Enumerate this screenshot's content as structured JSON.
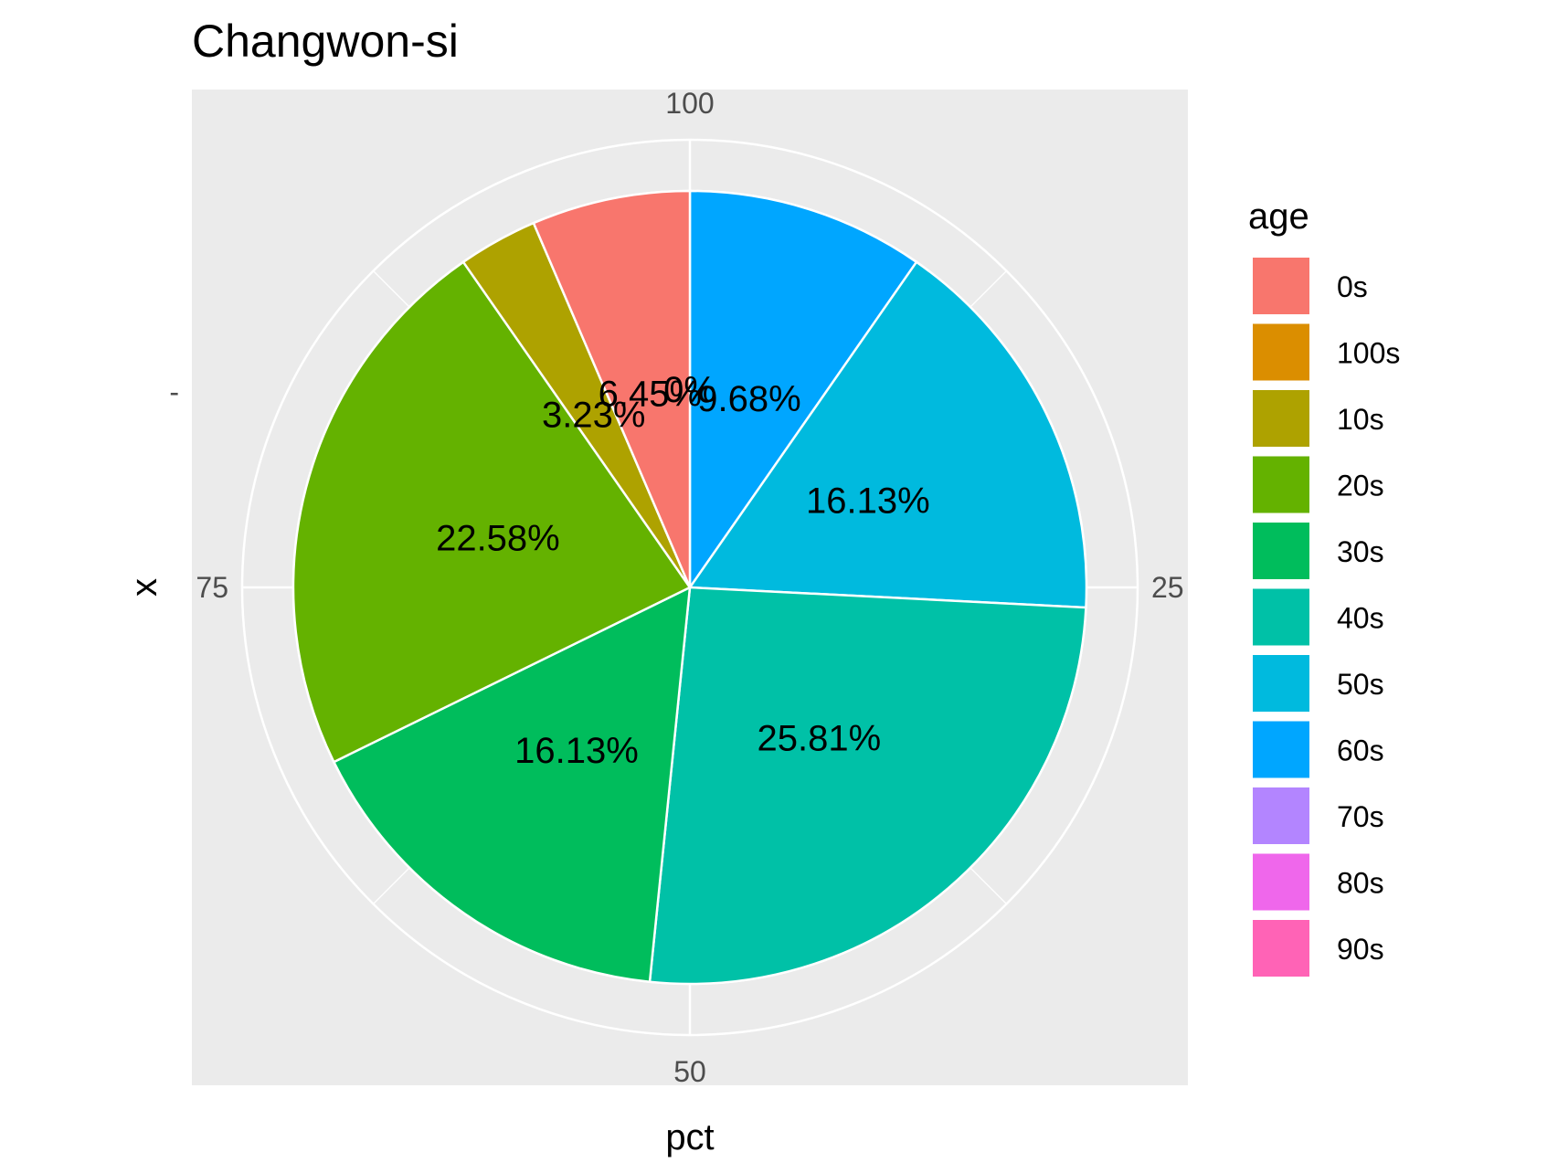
{
  "chart_data": {
    "type": "pie",
    "title": "Changwon-si",
    "xlabel": "pct",
    "ylabel": "x",
    "y_tick_label": "-",
    "theta_range": [
      0,
      100
    ],
    "theta_ticks": [
      "100",
      "25",
      "50",
      "75"
    ],
    "grid": true,
    "legend": {
      "title": "age",
      "position": "right",
      "entries": [
        "0s",
        "100s",
        "10s",
        "20s",
        "30s",
        "40s",
        "50s",
        "60s",
        "70s",
        "80s",
        "90s"
      ]
    },
    "slices": [
      {
        "label": "0s",
        "value": 6.45,
        "text": "6.45%",
        "color": "#F8766D"
      },
      {
        "label": "100s",
        "value": 0,
        "text": "0%",
        "color": "#DB8E00"
      },
      {
        "label": "10s",
        "value": 3.23,
        "text": "3.23%",
        "color": "#AEA200"
      },
      {
        "label": "20s",
        "value": 22.58,
        "text": "22.58%",
        "color": "#64B200"
      },
      {
        "label": "30s",
        "value": 16.13,
        "text": "16.13%",
        "color": "#00BD5C"
      },
      {
        "label": "40s",
        "value": 25.81,
        "text": "25.81%",
        "color": "#00C1A7"
      },
      {
        "label": "50s",
        "value": 16.13,
        "text": "16.13%",
        "color": "#00BADE"
      },
      {
        "label": "60s",
        "value": 9.68,
        "text": "9.68%",
        "color": "#00A6FF"
      },
      {
        "label": "70s",
        "value": 0,
        "text": "0%",
        "color": "#B385FF"
      },
      {
        "label": "80s",
        "value": 0,
        "text": "0%",
        "color": "#EF67EB"
      },
      {
        "label": "90s",
        "value": 0,
        "text": "0%",
        "color": "#FF63B6"
      }
    ]
  }
}
